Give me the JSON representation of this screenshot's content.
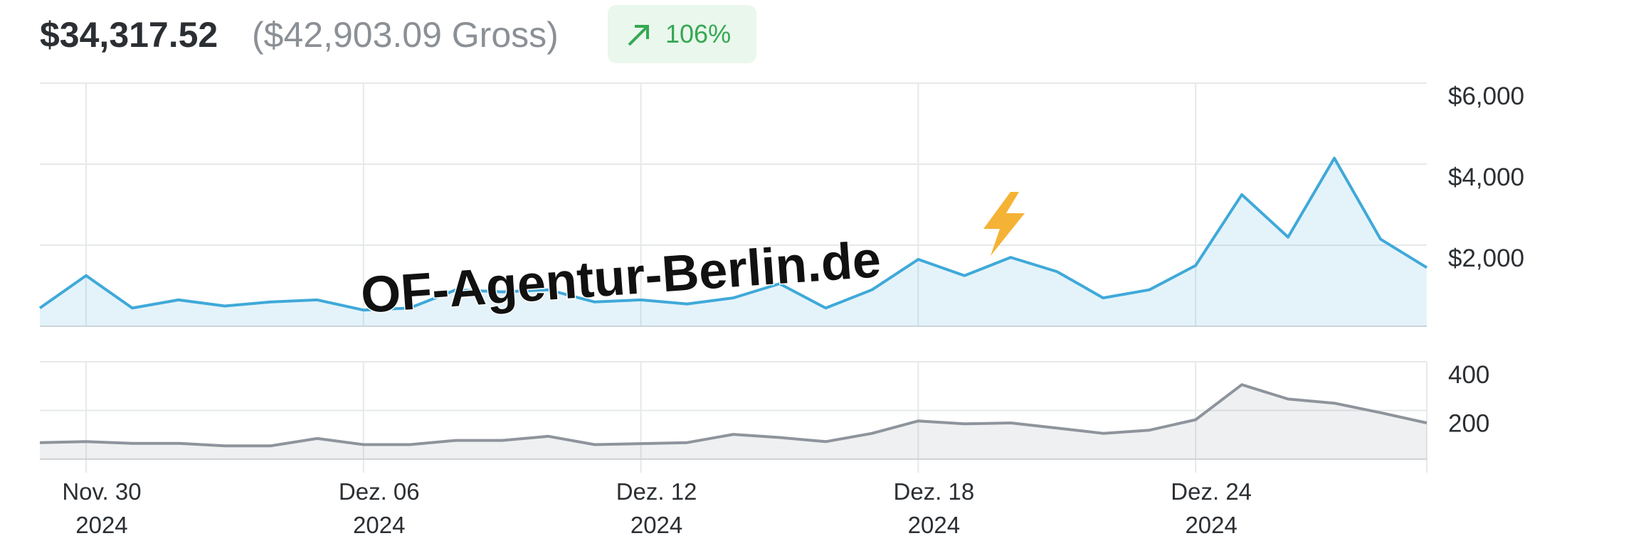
{
  "header": {
    "net": "$34,317.52",
    "gross": "($42,903.09 Gross)",
    "change": "106%"
  },
  "watermark": "OF-Agentur-Berlin.de",
  "chart_data": [
    {
      "type": "area",
      "color": "#3fa9d9",
      "x": [
        "2024-11-29",
        "2024-11-30",
        "2024-12-01",
        "2024-12-02",
        "2024-12-03",
        "2024-12-04",
        "2024-12-05",
        "2024-12-06",
        "2024-12-07",
        "2024-12-08",
        "2024-12-09",
        "2024-12-10",
        "2024-12-11",
        "2024-12-12",
        "2024-12-13",
        "2024-12-14",
        "2024-12-15",
        "2024-12-16",
        "2024-12-17",
        "2024-12-18",
        "2024-12-19",
        "2024-12-20",
        "2024-12-21",
        "2024-12-22",
        "2024-12-23",
        "2024-12-24",
        "2024-12-25",
        "2024-12-26",
        "2024-12-27",
        "2024-12-28",
        "2024-12-29"
      ],
      "values": [
        450,
        1250,
        450,
        650,
        500,
        600,
        650,
        400,
        450,
        900,
        850,
        900,
        600,
        650,
        550,
        700,
        1050,
        450,
        900,
        1650,
        1250,
        1700,
        1350,
        700,
        900,
        1500,
        3250,
        2200,
        4150,
        2150,
        1450
      ],
      "xlim": [
        "2024-11-29",
        "2024-12-29"
      ],
      "xticks": [
        "2024-11-30",
        "2024-12-06",
        "2024-12-12",
        "2024-12-18",
        "2024-12-24"
      ],
      "ylim": [
        0,
        6000
      ],
      "yticks": [
        {
          "value": 2000,
          "label": "$2,000"
        },
        {
          "value": 4000,
          "label": "$4,000"
        },
        {
          "value": 6000,
          "label": "$6,000"
        }
      ],
      "grid": true
    },
    {
      "type": "area",
      "color": "#8e949c",
      "x": [
        "2024-11-29",
        "2024-11-30",
        "2024-12-01",
        "2024-12-02",
        "2024-12-03",
        "2024-12-04",
        "2024-12-05",
        "2024-12-06",
        "2024-12-07",
        "2024-12-08",
        "2024-12-09",
        "2024-12-10",
        "2024-12-11",
        "2024-12-12",
        "2024-12-13",
        "2024-12-14",
        "2024-12-15",
        "2024-12-16",
        "2024-12-17",
        "2024-12-18",
        "2024-12-19",
        "2024-12-20",
        "2024-12-21",
        "2024-12-22",
        "2024-12-23",
        "2024-12-24",
        "2024-12-25",
        "2024-12-26",
        "2024-12-27",
        "2024-12-28",
        "2024-12-29"
      ],
      "values": [
        68,
        72,
        65,
        65,
        55,
        55,
        85,
        60,
        60,
        77,
        77,
        94,
        60,
        64,
        68,
        102,
        89,
        72,
        106,
        157,
        145,
        149,
        128,
        106,
        119,
        162,
        306,
        247,
        230,
        191,
        149
      ],
      "xlim": [
        "2024-11-29",
        "2024-12-29"
      ],
      "xticks": [
        {
          "value": "2024-11-30",
          "label": [
            "Nov. 30",
            "2024"
          ]
        },
        {
          "value": "2024-12-06",
          "label": [
            "Dez. 06",
            "2024"
          ]
        },
        {
          "value": "2024-12-12",
          "label": [
            "Dez. 12",
            "2024"
          ]
        },
        {
          "value": "2024-12-18",
          "label": [
            "Dez. 18",
            "2024"
          ]
        },
        {
          "value": "2024-12-24",
          "label": [
            "Dez. 24",
            "2024"
          ]
        }
      ],
      "ylim": [
        0,
        400
      ],
      "yticks": [
        200,
        400
      ],
      "grid": true
    }
  ]
}
